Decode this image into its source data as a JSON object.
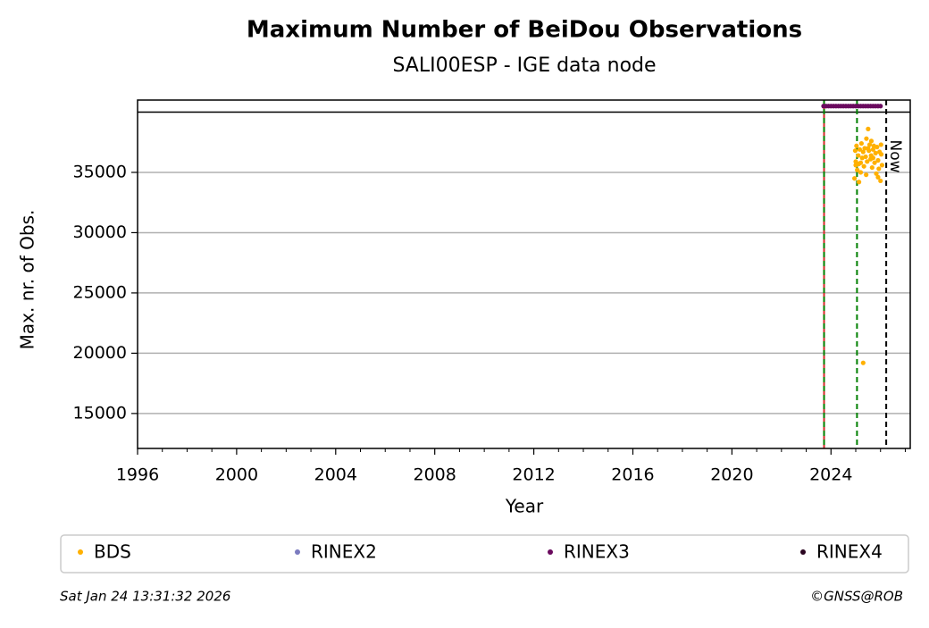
{
  "chart_data": {
    "type": "scatter",
    "title": "Maximum Number of BeiDou Observations",
    "subtitle": "SALI00ESP - IGE data node",
    "x_label": "Year",
    "y_label": "Max. nr. of Obs.",
    "xlim": [
      1996,
      2027.2
    ],
    "ylim": [
      12100,
      41000
    ],
    "xticks": [
      1996,
      2000,
      2004,
      2008,
      2012,
      2016,
      2020,
      2024
    ],
    "xminorticks": [
      1997,
      1998,
      1999,
      2001,
      2002,
      2003,
      2005,
      2006,
      2007,
      2009,
      2010,
      2011,
      2013,
      2014,
      2015,
      2017,
      2018,
      2019,
      2021,
      2022,
      2023,
      2025,
      2026,
      2027
    ],
    "yticks": [
      15000,
      20000,
      25000,
      30000,
      35000
    ],
    "grid": true,
    "hlines": [
      {
        "y": 40000,
        "color": "#000000"
      }
    ],
    "vlines": [
      {
        "x": 2023.72,
        "color": "#d62728",
        "style": "solid"
      },
      {
        "x": 2023.72,
        "color": "#008000",
        "style": "dashed"
      },
      {
        "x": 2025.05,
        "color": "#008000",
        "style": "dashed"
      },
      {
        "x": 2026.23,
        "color": "#000000",
        "style": "dashed",
        "label": "Now"
      }
    ],
    "series": [
      {
        "name": "BDS",
        "color": "#ffb000",
        "x": [
          2024.95,
          2024.98,
          2025.0,
          2025.03,
          2025.06,
          2025.1,
          2025.13,
          2025.16,
          2025.2,
          2025.23,
          2025.26,
          2025.3,
          2025.33,
          2025.36,
          2025.4,
          2025.43,
          2025.46,
          2025.5,
          2025.53,
          2025.56,
          2025.6,
          2025.63,
          2025.66,
          2025.7,
          2025.73,
          2025.76,
          2025.8,
          2025.83,
          2025.86,
          2025.9,
          2025.93,
          2025.96,
          2026.0,
          2026.03,
          2026.06,
          2025.3,
          2025.0,
          2025.2,
          2025.5,
          2025.7,
          2025.9,
          2026.02,
          2025.12,
          2025.42,
          2025.62
        ],
        "values": [
          34500,
          36800,
          35600,
          37200,
          35200,
          36400,
          34200,
          36900,
          35800,
          37400,
          36200,
          19200,
          35500,
          37000,
          36300,
          37800,
          35900,
          38600,
          36800,
          37300,
          36100,
          37600,
          35400,
          36900,
          37200,
          35800,
          36600,
          34900,
          37100,
          36000,
          35300,
          36700,
          34300,
          36500,
          35600,
          36700,
          35900,
          35000,
          37000,
          36200,
          34600,
          37300,
          35700,
          34800,
          36400
        ]
      },
      {
        "name": "RINEX2",
        "color": "#7b7bbf",
        "x": [],
        "values": []
      },
      {
        "name": "RINEX3",
        "color": "#6a0a5e",
        "x": [
          2023.7,
          2023.8,
          2023.9,
          2024.0,
          2024.1,
          2024.2,
          2024.3,
          2024.4,
          2024.5,
          2024.6,
          2024.7,
          2024.8,
          2024.9,
          2025.0,
          2025.1,
          2025.2,
          2025.3,
          2025.4,
          2025.5,
          2025.6,
          2025.7,
          2025.8,
          2025.9,
          2026.0
        ],
        "values": [
          40500,
          40500,
          40500,
          40500,
          40500,
          40500,
          40500,
          40500,
          40500,
          40500,
          40500,
          40500,
          40500,
          40500,
          40500,
          40500,
          40500,
          40500,
          40500,
          40500,
          40500,
          40500,
          40500,
          40500
        ]
      },
      {
        "name": "RINEX4",
        "color": "#2a0520",
        "x": [],
        "values": []
      }
    ],
    "timestamp": "Sat Jan 24 13:31:32 2026",
    "credit": "©GNSS@ROB"
  }
}
